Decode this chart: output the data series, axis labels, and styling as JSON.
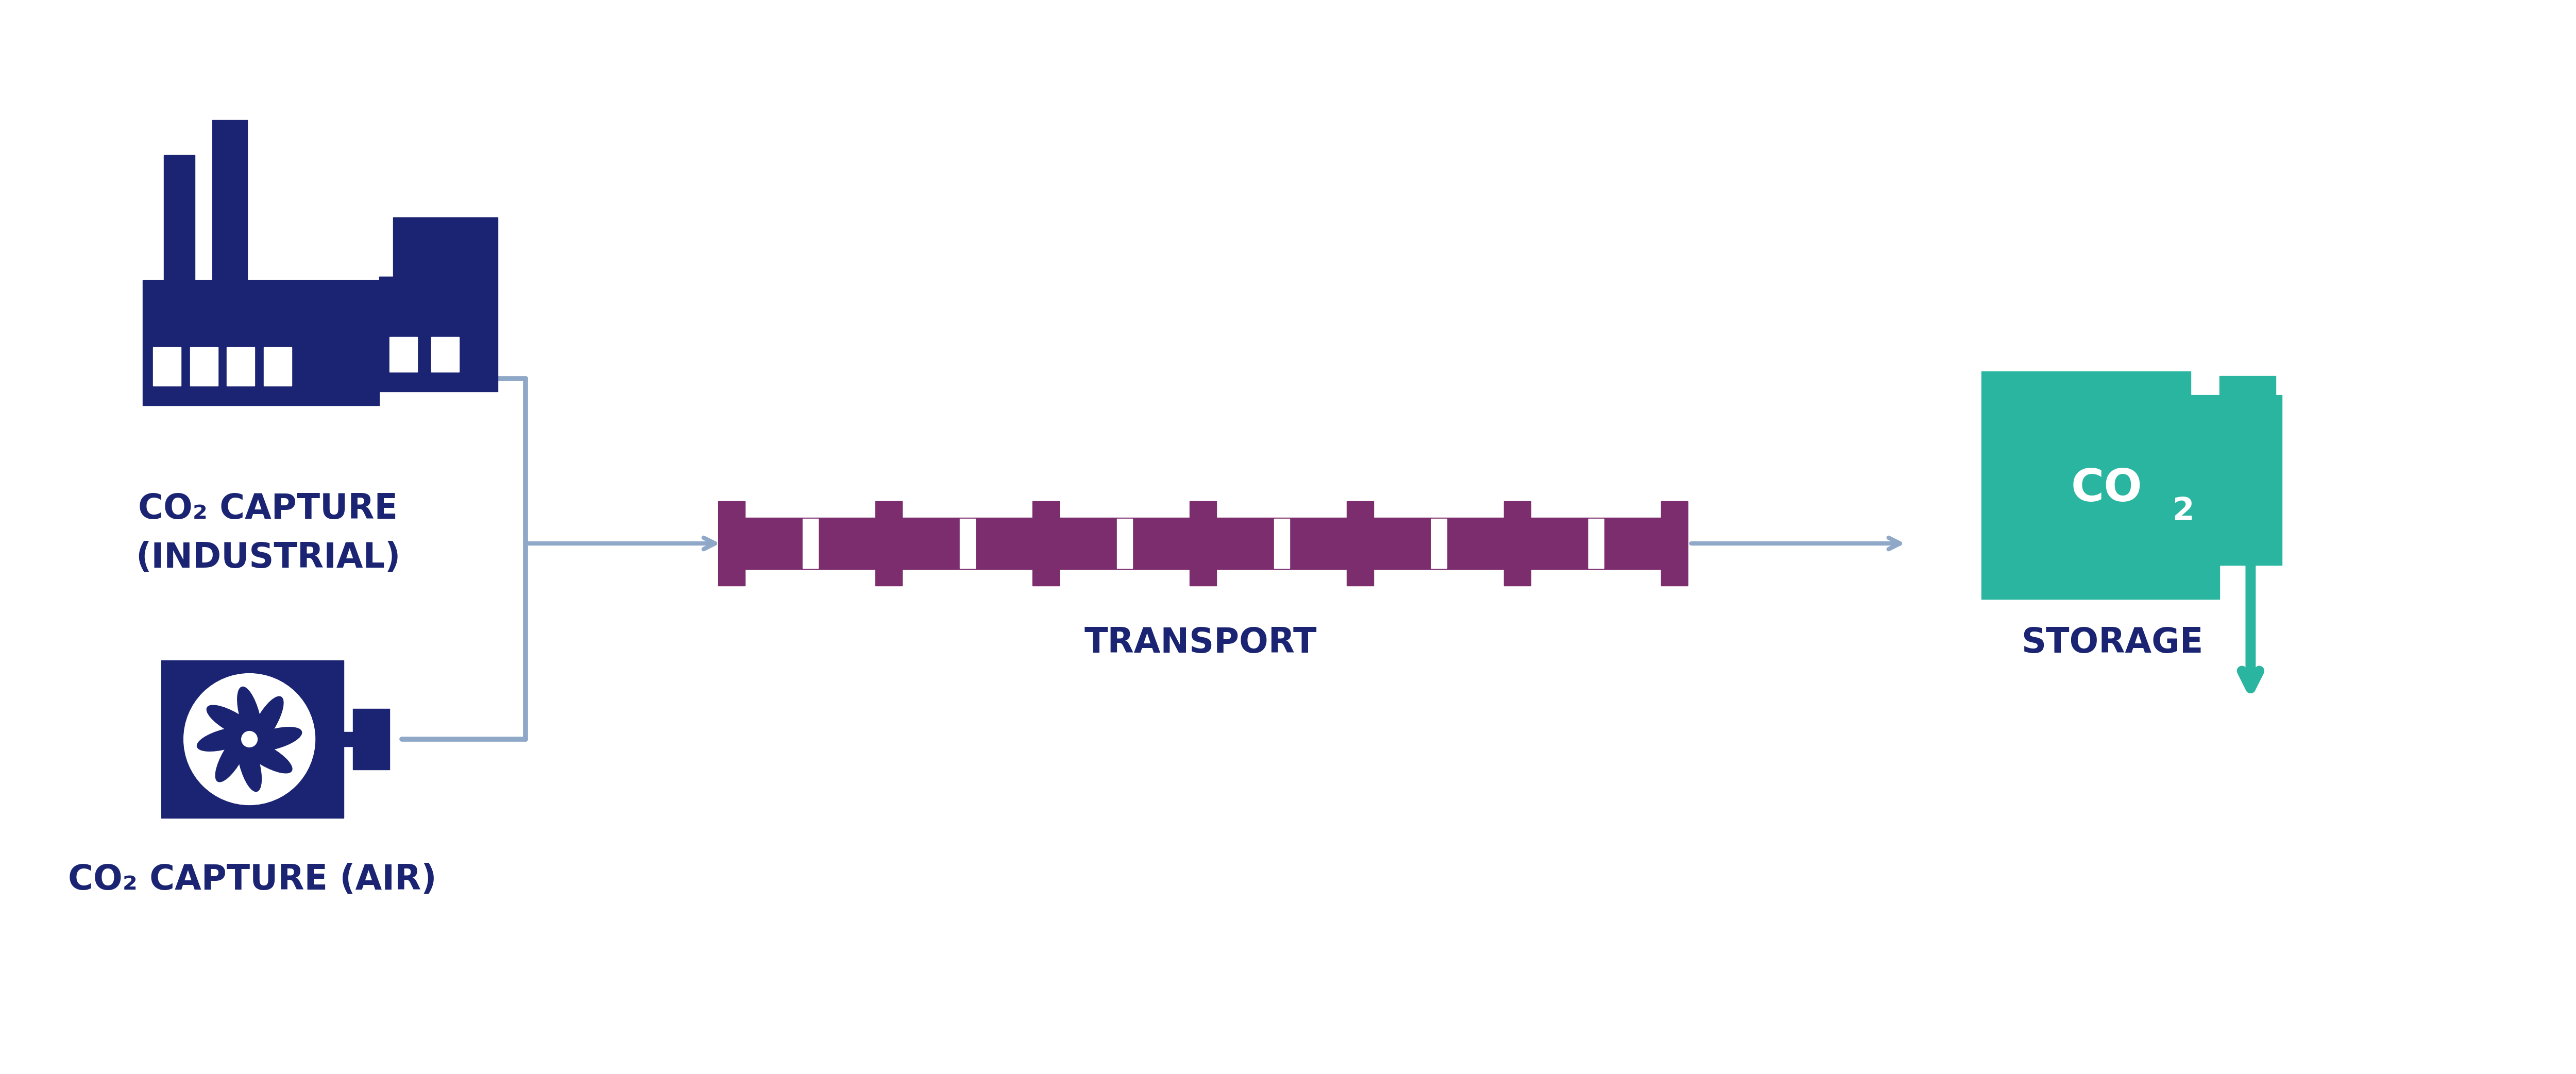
{
  "bg_color": "#ffffff",
  "dark_blue": "#1a2472",
  "teal": "#2ab5a0",
  "purple": "#7b2d6e",
  "arrow_color": "#8fa8c8",
  "label_color": "#1a2472",
  "fig_width": 50.0,
  "fig_height": 20.85,
  "label_fontsize": 48,
  "co2_tank_fontsize": 60,
  "transport_label": "TRANSPORT",
  "storage_label": "STORAGE",
  "industrial_label_line1": "CO₂ CAPTURE",
  "industrial_label_line2": "(INDUSTRIAL)",
  "air_label_line1": "CO₂ CAPTURE (AIR)"
}
